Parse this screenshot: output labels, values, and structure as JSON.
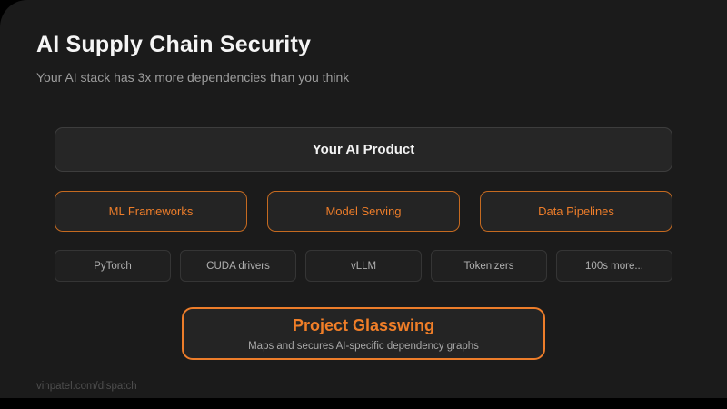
{
  "slide": {
    "title": "AI Supply Chain Security",
    "subtitle": "Your AI stack has 3x more dependencies than you think",
    "footer": "vinpatel.com/dispatch"
  },
  "diagram": {
    "product": {
      "label": "Your AI Product"
    },
    "categories": [
      {
        "label": "ML Frameworks"
      },
      {
        "label": "Model Serving"
      },
      {
        "label": "Data Pipelines"
      }
    ],
    "dependencies": [
      {
        "label": "PyTorch"
      },
      {
        "label": "CUDA drivers"
      },
      {
        "label": "vLLM"
      },
      {
        "label": "Tokenizers"
      },
      {
        "label": "100s more..."
      }
    ],
    "solution": {
      "title": "Project Glasswing",
      "subtitle": "Maps and secures AI-specific dependency graphs"
    }
  },
  "colors": {
    "accent": "#ed7d2a",
    "slide_background": "#1b1b1b",
    "box_background": "#242424"
  }
}
